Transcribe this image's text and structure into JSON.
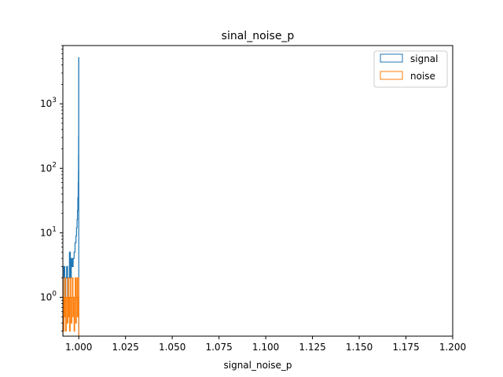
{
  "chart_data": {
    "type": "histogram",
    "title": "sinal_noise_p",
    "xlabel": "signal_noise_p",
    "ylabel": "",
    "xlim": [
      0.9915,
      1.2
    ],
    "ylim": [
      0.25,
      8000
    ],
    "yscale": "log",
    "grid": false,
    "legend_position": "top-right",
    "x_ticks": [
      "1.000",
      "1.025",
      "1.050",
      "1.075",
      "1.100",
      "1.125",
      "1.150",
      "1.175",
      "1.200"
    ],
    "x_tick_values": [
      1.0,
      1.025,
      1.05,
      1.075,
      1.1,
      1.125,
      1.15,
      1.175,
      1.2
    ],
    "y_ticks": [
      {
        "value": 1,
        "base": "10",
        "exp": "0"
      },
      {
        "value": 10,
        "base": "10",
        "exp": "1"
      },
      {
        "value": 100,
        "base": "10",
        "exp": "2"
      },
      {
        "value": 1000,
        "base": "10",
        "exp": "3"
      }
    ],
    "series": [
      {
        "name": "signal",
        "color": "#1f77b4",
        "style": "step",
        "points": [
          [
            0.9915,
            2
          ],
          [
            0.992,
            3
          ],
          [
            0.9925,
            1
          ],
          [
            0.993,
            2
          ],
          [
            0.9935,
            3
          ],
          [
            0.994,
            1
          ],
          [
            0.9945,
            2
          ],
          [
            0.995,
            5
          ],
          [
            0.9955,
            2
          ],
          [
            0.996,
            4
          ],
          [
            0.9965,
            3
          ],
          [
            0.997,
            4
          ],
          [
            0.9975,
            5
          ],
          [
            0.998,
            7
          ],
          [
            0.9985,
            9
          ],
          [
            0.9988,
            12
          ],
          [
            0.9991,
            16
          ],
          [
            0.9993,
            22
          ],
          [
            0.9995,
            35
          ],
          [
            0.9997,
            60
          ],
          [
            0.9998,
            90
          ],
          [
            0.99985,
            160
          ],
          [
            0.9999,
            320
          ],
          [
            0.99995,
            5200
          ],
          [
            1.0,
            0.25
          ]
        ]
      },
      {
        "name": "noise",
        "color": "#ff7f0e",
        "style": "step",
        "points": [
          [
            0.9915,
            2
          ],
          [
            0.9918,
            0.3
          ],
          [
            0.9921,
            1
          ],
          [
            0.9924,
            0.5
          ],
          [
            0.9927,
            2
          ],
          [
            0.993,
            0.3
          ],
          [
            0.9933,
            1
          ],
          [
            0.9936,
            1
          ],
          [
            0.9939,
            0.4
          ],
          [
            0.9942,
            2
          ],
          [
            0.9945,
            0.5
          ],
          [
            0.9948,
            1
          ],
          [
            0.9951,
            0.3
          ],
          [
            0.9954,
            2
          ],
          [
            0.9957,
            1
          ],
          [
            0.996,
            0.4
          ],
          [
            0.9963,
            1
          ],
          [
            0.9966,
            2
          ],
          [
            0.9969,
            0.5
          ],
          [
            0.9972,
            1
          ],
          [
            0.9975,
            0.3
          ],
          [
            0.9978,
            1
          ],
          [
            0.9981,
            2
          ],
          [
            0.9984,
            0.4
          ],
          [
            0.9987,
            1
          ],
          [
            0.999,
            2
          ],
          [
            0.9993,
            0.5
          ],
          [
            0.9996,
            1
          ],
          [
            0.9999,
            2
          ],
          [
            1.0,
            0.25
          ]
        ]
      }
    ]
  }
}
